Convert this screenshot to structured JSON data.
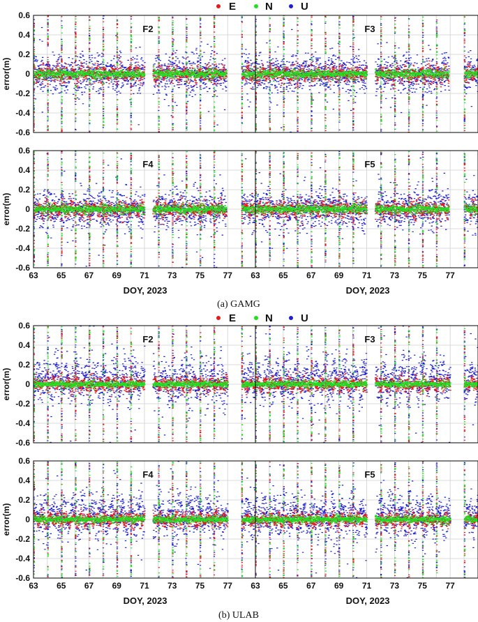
{
  "figure": {
    "legend": [
      {
        "label": "E",
        "color": "#e41a1c"
      },
      {
        "label": "N",
        "color": "#22dd22"
      },
      {
        "label": "U",
        "color": "#1f1fd0"
      }
    ],
    "captions": [
      "(a)  GAMG",
      "(b) ULAB"
    ]
  },
  "chart_data": [
    {
      "type": "scatter",
      "group": "GAMG",
      "title": "F2",
      "xlabel": "DOY, 2023",
      "ylabel": "error(m)",
      "xlim": [
        63,
        79
      ],
      "ylim": [
        -0.6,
        0.6
      ],
      "xticks": [
        "63",
        "65",
        "67",
        "69",
        "71",
        "73",
        "75",
        "77"
      ],
      "yticks": [
        "0.6",
        "0.4",
        "0.2",
        "0",
        "-0.2",
        "-0.4",
        "-0.6"
      ],
      "grid": true,
      "series_names": [
        "E",
        "N",
        "U"
      ],
      "data_gaps_doy": [
        [
          71.0,
          71.6
        ],
        [
          76.9,
          78.0
        ]
      ],
      "approx_spread_m": {
        "E": 0.08,
        "N": 0.05,
        "U": 0.18
      }
    },
    {
      "type": "scatter",
      "group": "GAMG",
      "title": "F3",
      "xlabel": "DOY, 2023",
      "ylabel": "error(m)",
      "xlim": [
        63,
        79
      ],
      "ylim": [
        -0.6,
        0.6
      ],
      "xticks": [
        "63",
        "65",
        "67",
        "69",
        "71",
        "73",
        "75",
        "77"
      ],
      "yticks": [
        "0.6",
        "0.4",
        "0.2",
        "0",
        "-0.2",
        "-0.4",
        "-0.6"
      ],
      "grid": true,
      "series_names": [
        "E",
        "N",
        "U"
      ],
      "data_gaps_doy": [
        [
          71.0,
          71.6
        ],
        [
          76.9,
          78.0
        ]
      ],
      "approx_spread_m": {
        "E": 0.08,
        "N": 0.05,
        "U": 0.18
      }
    },
    {
      "type": "scatter",
      "group": "GAMG",
      "title": "F4",
      "xlabel": "DOY, 2023",
      "ylabel": "error(m)",
      "xlim": [
        63,
        79
      ],
      "ylim": [
        -0.6,
        0.6
      ],
      "xticks": [
        "63",
        "65",
        "67",
        "69",
        "71",
        "73",
        "75",
        "77"
      ],
      "yticks": [
        "0.6",
        "0.4",
        "0.2",
        "0",
        "-0.2",
        "-0.4",
        "-0.6"
      ],
      "grid": true,
      "series_names": [
        "E",
        "N",
        "U"
      ],
      "data_gaps_doy": [
        [
          71.0,
          71.6
        ],
        [
          76.9,
          78.0
        ]
      ],
      "approx_spread_m": {
        "E": 0.08,
        "N": 0.05,
        "U": 0.18
      }
    },
    {
      "type": "scatter",
      "group": "GAMG",
      "title": "F5",
      "xlabel": "DOY, 2023",
      "ylabel": "error(m)",
      "xlim": [
        63,
        79
      ],
      "ylim": [
        -0.6,
        0.6
      ],
      "xticks": [
        "63",
        "65",
        "67",
        "69",
        "71",
        "73",
        "75",
        "77"
      ],
      "yticks": [
        "0.6",
        "0.4",
        "0.2",
        "0",
        "-0.2",
        "-0.4",
        "-0.6"
      ],
      "grid": true,
      "series_names": [
        "E",
        "N",
        "U"
      ],
      "data_gaps_doy": [
        [
          71.0,
          71.6
        ],
        [
          76.9,
          78.0
        ]
      ],
      "approx_spread_m": {
        "E": 0.08,
        "N": 0.05,
        "U": 0.18
      }
    },
    {
      "type": "scatter",
      "group": "ULAB",
      "title": "F2",
      "xlabel": "DOY, 2023",
      "ylabel": "error(m)",
      "xlim": [
        63,
        79
      ],
      "ylim": [
        -0.6,
        0.6
      ],
      "xticks": [
        "63",
        "65",
        "67",
        "69",
        "71",
        "73",
        "75",
        "77"
      ],
      "yticks": [
        "0.6",
        "0.4",
        "0.2",
        "0",
        "-0.2",
        "-0.4",
        "-0.6"
      ],
      "grid": true,
      "series_names": [
        "E",
        "N",
        "U"
      ],
      "data_gaps_doy": [
        [
          71.0,
          71.6
        ],
        [
          77.0,
          78.0
        ]
      ],
      "approx_spread_m": {
        "E": 0.07,
        "N": 0.04,
        "U": 0.2
      }
    },
    {
      "type": "scatter",
      "group": "ULAB",
      "title": "F3",
      "xlabel": "DOY, 2023",
      "ylabel": "error(m)",
      "xlim": [
        63,
        79
      ],
      "ylim": [
        -0.6,
        0.6
      ],
      "xticks": [
        "63",
        "65",
        "67",
        "69",
        "71",
        "73",
        "75",
        "77"
      ],
      "yticks": [
        "0.6",
        "0.4",
        "0.2",
        "0",
        "-0.2",
        "-0.4",
        "-0.6"
      ],
      "grid": true,
      "series_names": [
        "E",
        "N",
        "U"
      ],
      "data_gaps_doy": [
        [
          71.0,
          71.6
        ],
        [
          77.0,
          78.0
        ]
      ],
      "approx_spread_m": {
        "E": 0.07,
        "N": 0.04,
        "U": 0.2
      }
    },
    {
      "type": "scatter",
      "group": "ULAB",
      "title": "F4",
      "xlabel": "DOY, 2023",
      "ylabel": "error(m)",
      "xlim": [
        63,
        79
      ],
      "ylim": [
        -0.6,
        0.6
      ],
      "xticks": [
        "63",
        "65",
        "67",
        "69",
        "71",
        "73",
        "75",
        "77"
      ],
      "yticks": [
        "0.6",
        "0.4",
        "0.2",
        "0",
        "-0.2",
        "-0.4",
        "-0.6"
      ],
      "grid": true,
      "series_names": [
        "E",
        "N",
        "U"
      ],
      "data_gaps_doy": [
        [
          71.0,
          71.6
        ],
        [
          77.0,
          78.0
        ]
      ],
      "approx_spread_m": {
        "E": 0.07,
        "N": 0.04,
        "U": 0.2
      }
    },
    {
      "type": "scatter",
      "group": "ULAB",
      "title": "F5",
      "xlabel": "DOY, 2023",
      "ylabel": "error(m)",
      "xlim": [
        63,
        79
      ],
      "ylim": [
        -0.6,
        0.6
      ],
      "xticks": [
        "63",
        "65",
        "67",
        "69",
        "71",
        "73",
        "75",
        "77"
      ],
      "yticks": [
        "0.6",
        "0.4",
        "0.2",
        "0",
        "-0.2",
        "-0.4",
        "-0.6"
      ],
      "grid": true,
      "series_names": [
        "E",
        "N",
        "U"
      ],
      "data_gaps_doy": [
        [
          71.0,
          71.6
        ],
        [
          77.0,
          78.0
        ]
      ],
      "approx_spread_m": {
        "E": 0.07,
        "N": 0.04,
        "U": 0.2
      }
    }
  ]
}
